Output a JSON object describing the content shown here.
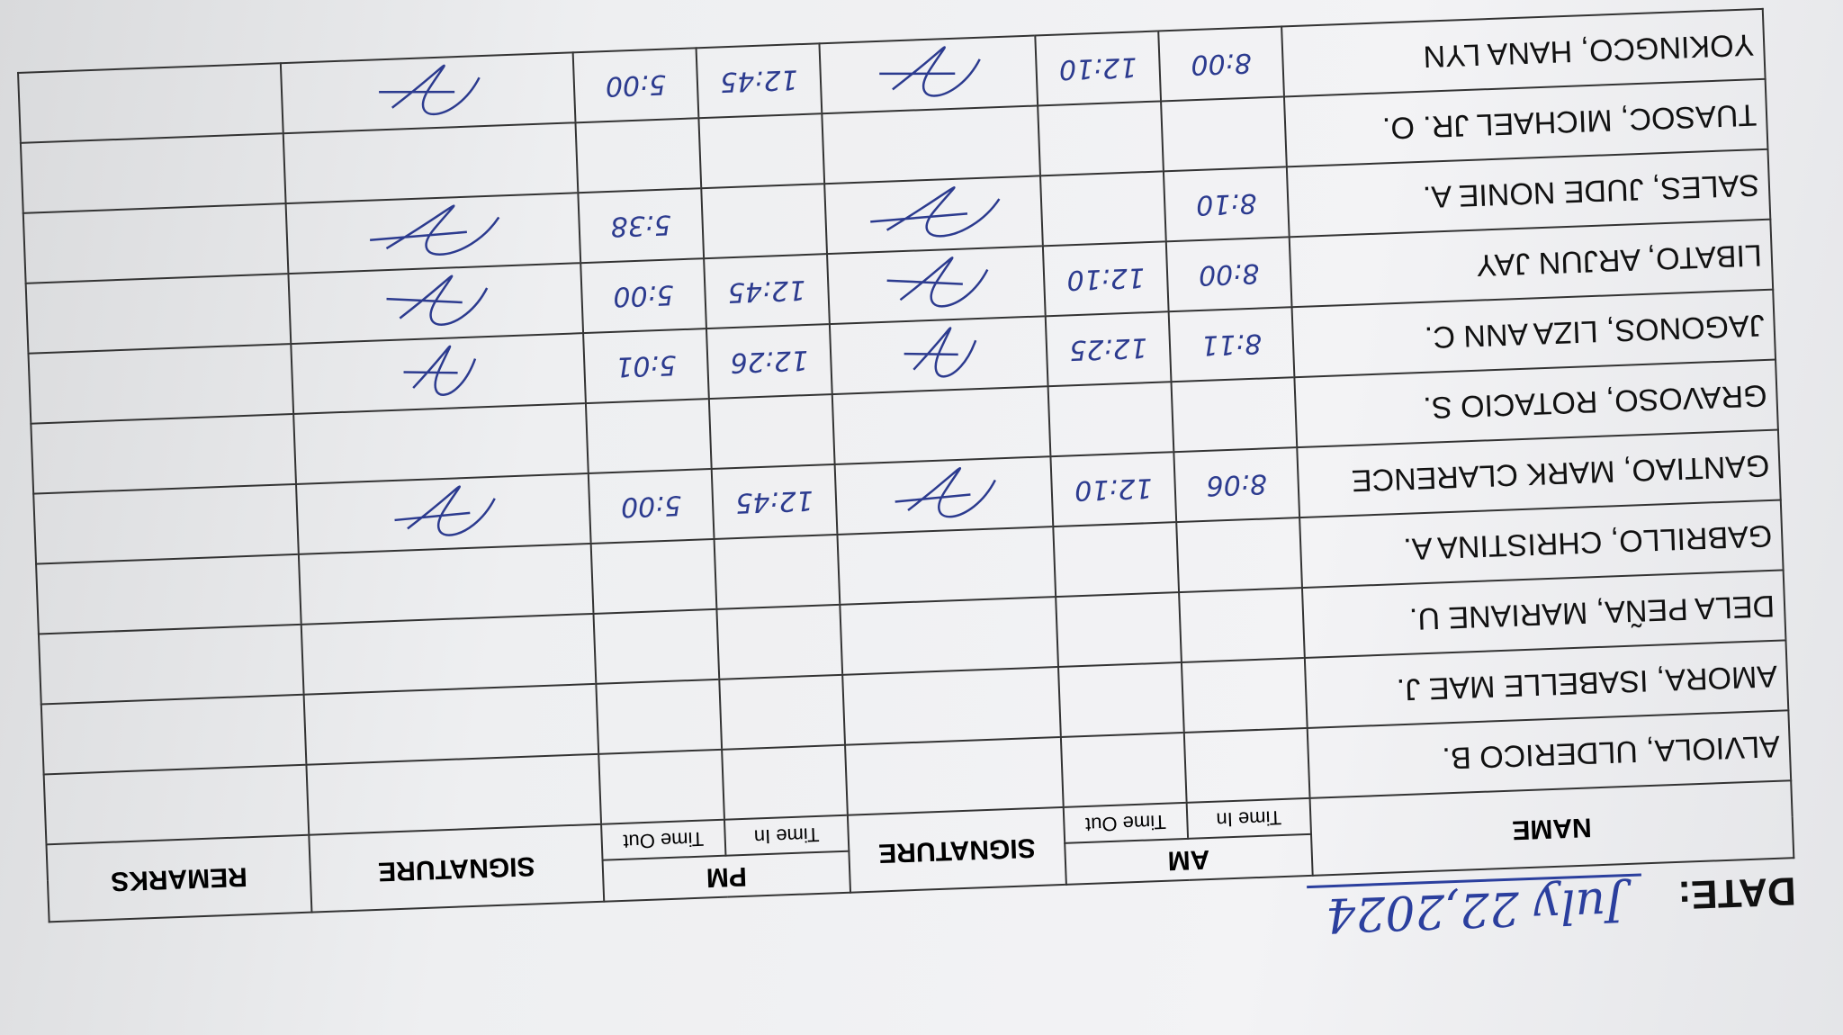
{
  "date_label": "DATE:",
  "date": "July 22,2024",
  "columns": {
    "name": "NAME",
    "am": "AM",
    "am_in": "Time In",
    "am_out": "Time Out",
    "sig_am": "SIGNATURE",
    "pm": "PM",
    "pm_in": "Time In",
    "pm_out": "Time Out",
    "sig_pm": "SIGNATURE",
    "remarks": "REMARKS"
  },
  "rows": [
    [
      "ALVIOLA, ULDERICO B.",
      null,
      null,
      null,
      null
    ],
    [
      "AMORA, ISABELLE MAE J.",
      null,
      null,
      null,
      null
    ],
    [
      "DELA PEÑA, MARIANE U.",
      null,
      null,
      null,
      null
    ],
    [
      "GABRILLO, CHRISTINA A.",
      null,
      null,
      null,
      null
    ],
    [
      "GANTIAO, MARK CLARENCE",
      "8:06",
      "12:10",
      "12:45",
      "5:00"
    ],
    [
      "GRAVOSO, ROTACIO S.",
      null,
      null,
      null,
      null
    ],
    [
      "JAGONOS, LIZA ANN C.",
      "8:11",
      "12:25",
      "12:26",
      "5:01"
    ],
    [
      "LIBATO, ARJUN JAY",
      "8:00",
      "12:10",
      "12:45",
      "5:00"
    ],
    [
      "SALES, JUDE NONIE A.",
      "8:10",
      null,
      null,
      "5:38"
    ],
    [
      "TUASOC, MICHAEL JR. O.",
      null,
      null,
      null,
      null
    ],
    [
      "YOKINGCO, HANA LYN",
      "8:00",
      "12:10",
      "12:45",
      "5:00"
    ]
  ]
}
